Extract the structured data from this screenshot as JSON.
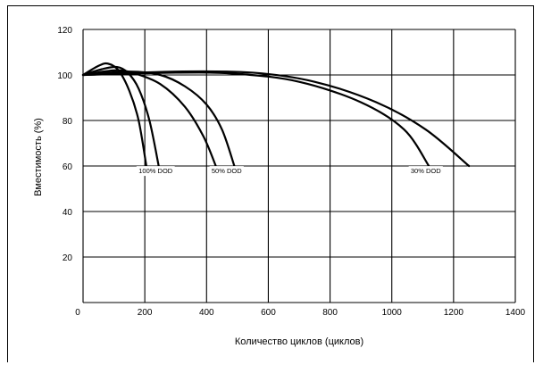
{
  "chart_data": {
    "type": "line",
    "xlabel": "Количество циклов (циклов)",
    "ylabel": "Вместимость (%)",
    "xlim": [
      0,
      1400
    ],
    "ylim": [
      0,
      120
    ],
    "x_ticks": [
      0,
      200,
      400,
      600,
      800,
      1000,
      1200,
      1400
    ],
    "y_ticks": [
      20,
      40,
      60,
      80,
      100,
      120
    ],
    "grid": true,
    "annotations": [
      {
        "text": "100% DOD",
        "x": 235,
        "y": 58
      },
      {
        "text": "50% DOD",
        "x": 465,
        "y": 58
      },
      {
        "text": "30% DOD",
        "x": 1110,
        "y": 58
      }
    ],
    "series": [
      {
        "values": [
          [
            0,
            100
          ],
          [
            50,
            104
          ],
          [
            80,
            105
          ],
          [
            115,
            102
          ],
          [
            150,
            93
          ],
          [
            180,
            80
          ],
          [
            205,
            60
          ]
        ]
      },
      {
        "values": [
          [
            0,
            100
          ],
          [
            60,
            102.5
          ],
          [
            110,
            103.5
          ],
          [
            145,
            101
          ],
          [
            180,
            94
          ],
          [
            215,
            80
          ],
          [
            245,
            60
          ]
        ]
      },
      {
        "values": [
          [
            0,
            100
          ],
          [
            100,
            102
          ],
          [
            160,
            101
          ],
          [
            250,
            96
          ],
          [
            330,
            86
          ],
          [
            390,
            73
          ],
          [
            430,
            60
          ]
        ]
      },
      {
        "values": [
          [
            0,
            100
          ],
          [
            150,
            101.5
          ],
          [
            250,
            100
          ],
          [
            330,
            95
          ],
          [
            400,
            87
          ],
          [
            450,
            76
          ],
          [
            490,
            60
          ]
        ]
      },
      {
        "values": [
          [
            0,
            100
          ],
          [
            300,
            101
          ],
          [
            500,
            100.5
          ],
          [
            700,
            97
          ],
          [
            900,
            88
          ],
          [
            1040,
            76
          ],
          [
            1120,
            60
          ]
        ]
      },
      {
        "values": [
          [
            0,
            100
          ],
          [
            300,
            101.5
          ],
          [
            550,
            101
          ],
          [
            750,
            97
          ],
          [
            950,
            88
          ],
          [
            1110,
            76
          ],
          [
            1250,
            60
          ]
        ]
      }
    ]
  }
}
